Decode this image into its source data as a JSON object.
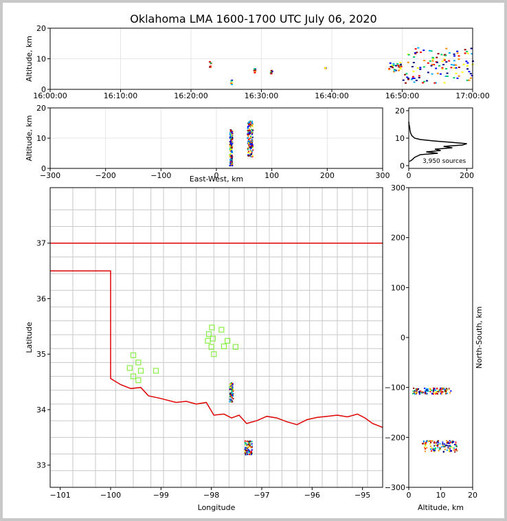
{
  "title": "Oklahoma LMA 1600-1700 UTC July 06, 2020",
  "colors": {
    "frame": "#000000",
    "grid": "#e6e6e6",
    "county": "#c8c8c8",
    "border": "#e00000",
    "station": "#88ee44",
    "profile": "#000000"
  },
  "chart_data": [
    {
      "id": "time-height",
      "type": "scatter",
      "xlabel": "",
      "ylabel": "Altitude, km",
      "x_ticks": [
        "16:00:00",
        "16:10:00",
        "16:20:00",
        "16:30:00",
        "16:40:00",
        "16:50:00",
        "17:00:00"
      ],
      "x_range_minutes": [
        0,
        60
      ],
      "ylim": [
        0,
        20
      ],
      "y_ticks": [
        0,
        10,
        20
      ],
      "clusters": [
        {
          "t_min": 22.5,
          "t_max": 22.7,
          "alt_min": 7,
          "alt_max": 9.5
        },
        {
          "t_min": 25.5,
          "t_max": 25.7,
          "alt_min": 1.5,
          "alt_max": 3.5
        },
        {
          "t_min": 28.8,
          "t_max": 29.0,
          "alt_min": 5.5,
          "alt_max": 7.5
        },
        {
          "t_min": 31.2,
          "t_max": 31.4,
          "alt_min": 5,
          "alt_max": 7.5
        },
        {
          "t_min": 38.8,
          "t_max": 39.0,
          "alt_min": 7,
          "alt_max": 7.4
        },
        {
          "t_min": 48.0,
          "t_max": 50.0,
          "alt_min": 6,
          "alt_max": 9
        },
        {
          "t_min": 50.0,
          "t_max": 56.0,
          "alt_min": 2,
          "alt_max": 14
        },
        {
          "t_min": 56.0,
          "t_max": 60.0,
          "alt_min": 3,
          "alt_max": 14
        }
      ]
    },
    {
      "id": "ew-altitude",
      "type": "scatter",
      "xlabel": "East-West, km",
      "ylabel": "Altitude, km",
      "xlim": [
        -300,
        300
      ],
      "x_ticks": [
        -300,
        -200,
        -100,
        0,
        100,
        200,
        300
      ],
      "ylim": [
        0,
        20
      ],
      "y_ticks": [
        0,
        10,
        20
      ],
      "clusters": [
        {
          "x_min": 23,
          "x_max": 28,
          "alt_min": 1,
          "alt_max": 13
        },
        {
          "x_min": 55,
          "x_max": 65,
          "alt_min": 4,
          "alt_max": 16
        }
      ]
    },
    {
      "id": "altitude-histogram",
      "type": "line",
      "xlabel": "",
      "ylabel": "",
      "xlim": [
        0,
        220
      ],
      "x_ticks": [
        0,
        200
      ],
      "ylim": [
        -1,
        21
      ],
      "y_ticks": [
        0,
        10,
        20
      ],
      "annotation": "3,950 sources",
      "profile": [
        {
          "alt": 1.5,
          "count": 2
        },
        {
          "alt": 2.0,
          "count": 10
        },
        {
          "alt": 3.0,
          "count": 20
        },
        {
          "alt": 4.0,
          "count": 40
        },
        {
          "alt": 4.5,
          "count": 100
        },
        {
          "alt": 5.0,
          "count": 60
        },
        {
          "alt": 5.5,
          "count": 110
        },
        {
          "alt": 6.0,
          "count": 90
        },
        {
          "alt": 6.5,
          "count": 150
        },
        {
          "alt": 7.0,
          "count": 120
        },
        {
          "alt": 7.5,
          "count": 185
        },
        {
          "alt": 8.0,
          "count": 200
        },
        {
          "alt": 8.5,
          "count": 145
        },
        {
          "alt": 9.0,
          "count": 85
        },
        {
          "alt": 9.5,
          "count": 40
        },
        {
          "alt": 10.0,
          "count": 20
        },
        {
          "alt": 11.0,
          "count": 10
        },
        {
          "alt": 12.0,
          "count": 6
        },
        {
          "alt": 13.0,
          "count": 4
        },
        {
          "alt": 14.0,
          "count": 3
        },
        {
          "alt": 15.0,
          "count": 1
        },
        {
          "alt": 16.0,
          "count": 0
        }
      ]
    },
    {
      "id": "plan-view",
      "type": "scatter",
      "xlabel": "Longitude",
      "ylabel": "Latitude",
      "xlim": [
        -101.2,
        -94.6
      ],
      "x_ticks": [
        -101,
        -100,
        -99,
        -98,
        -97,
        -96,
        -95
      ],
      "ylim": [
        32.6,
        38.0
      ],
      "y_ticks": [
        33,
        34,
        35,
        36,
        37
      ],
      "stations": [
        [
          -99.55,
          34.98
        ],
        [
          -99.45,
          34.85
        ],
        [
          -99.62,
          34.75
        ],
        [
          -99.4,
          34.7
        ],
        [
          -99.55,
          34.6
        ],
        [
          -99.45,
          34.53
        ],
        [
          -99.1,
          34.7
        ],
        [
          -97.99,
          35.48
        ],
        [
          -98.05,
          35.36
        ],
        [
          -97.97,
          35.28
        ],
        [
          -98.07,
          35.24
        ],
        [
          -97.8,
          35.44
        ],
        [
          -97.68,
          35.24
        ],
        [
          -98.0,
          35.13
        ],
        [
          -97.95,
          35.0
        ],
        [
          -97.75,
          35.14
        ],
        [
          -97.52,
          35.13
        ]
      ],
      "source_clusters": [
        {
          "lon_min": -97.65,
          "lon_max": -97.58,
          "lat_min": 34.15,
          "lat_max": 34.5
        },
        {
          "lon_min": -97.35,
          "lon_max": -97.2,
          "lat_min": 33.2,
          "lat_max": 33.45
        }
      ]
    },
    {
      "id": "altitude-ns",
      "type": "scatter",
      "xlabel": "Altitude, km",
      "ylabel": "North-South, km",
      "xlim": [
        0,
        20
      ],
      "x_ticks": [
        0,
        10,
        20
      ],
      "ylim": [
        -300,
        300
      ],
      "y_ticks": [
        -300,
        -200,
        -100,
        0,
        100,
        200,
        300
      ],
      "clusters": [
        {
          "alt_min": 1,
          "alt_max": 13,
          "ns_min": -112,
          "ns_max": -100
        },
        {
          "alt_min": 4,
          "alt_max": 15,
          "ns_min": -228,
          "ns_max": -205
        }
      ]
    }
  ]
}
